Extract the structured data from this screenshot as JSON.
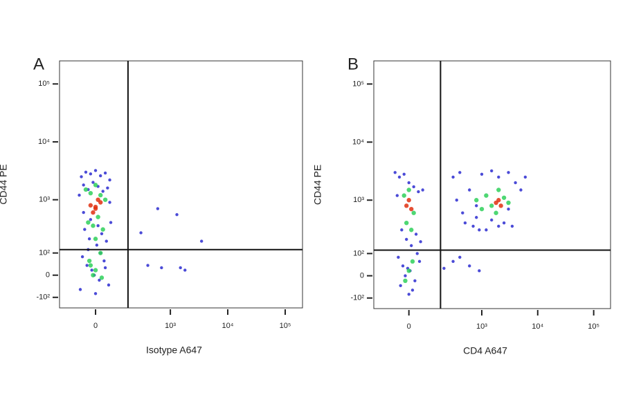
{
  "chart_data": [
    {
      "type": "scatter",
      "panel_label": "A",
      "xlabel": "Isotype A647",
      "ylabel": "CD44 PE",
      "scale": "biexponential",
      "xlim": [
        -200,
        200000
      ],
      "ylim": [
        -170,
        250000
      ],
      "xticks": [
        {
          "value": 0,
          "label": "0"
        },
        {
          "value": 1000,
          "label": "10³"
        },
        {
          "value": 10000,
          "label": "10⁴"
        },
        {
          "value": 100000,
          "label": "10⁵"
        }
      ],
      "yticks": [
        {
          "value": -100,
          "label": "-10²"
        },
        {
          "value": 0,
          "label": "0"
        },
        {
          "value": 100,
          "label": "10²"
        },
        {
          "value": 1000,
          "label": "10³"
        },
        {
          "value": 10000,
          "label": "10⁴"
        },
        {
          "value": 100000,
          "label": "10⁵"
        }
      ],
      "gates": {
        "x": 170,
        "y": 120
      },
      "series": [
        {
          "color": "#2b2bd0",
          "x": [
            -60,
            -40,
            -20,
            0,
            20,
            40,
            60,
            -50,
            -30,
            -10,
            10,
            30,
            50,
            -70,
            -45,
            -25,
            5,
            25,
            45,
            65,
            -55,
            -35,
            -15,
            15,
            35,
            55,
            -65,
            -5,
            0,
            20,
            -30,
            40,
            -50,
            10,
            60,
            -20,
            600,
            1300,
            3500,
            300,
            400,
            700,
            1500,
            1800
          ],
          "y": [
            2500,
            3000,
            2800,
            3200,
            2600,
            2900,
            2200,
            1800,
            1500,
            2000,
            1700,
            1400,
            1600,
            1200,
            300,
            200,
            150,
            250,
            180,
            400,
            80,
            40,
            20,
            -20,
            60,
            -40,
            -60,
            0,
            -80,
            100,
            120,
            30,
            600,
            350,
            900,
            450,
            700,
            550,
            180,
            260,
            40,
            30,
            30,
            20
          ]
        },
        {
          "color": "#2fd05a",
          "x": [
            -40,
            -20,
            0,
            20,
            40,
            -30,
            -10,
            10,
            30,
            -25,
            0,
            25,
            -20,
            0,
            20,
            -10
          ],
          "y": [
            1500,
            1300,
            1800,
            1200,
            1000,
            400,
            350,
            500,
            300,
            60,
            20,
            -10,
            40,
            200,
            100,
            0
          ]
        },
        {
          "color": "#e03010",
          "x": [
            -20,
            0,
            20,
            -10,
            10,
            0
          ],
          "y": [
            800,
            700,
            900,
            600,
            1000,
            750
          ]
        }
      ]
    },
    {
      "type": "scatter",
      "panel_label": "B",
      "xlabel": "CD4 A647",
      "ylabel": "CD44 PE",
      "scale": "biexponential",
      "xlim": [
        -200,
        200000
      ],
      "ylim": [
        -170,
        250000
      ],
      "xticks": [
        {
          "value": 0,
          "label": "0"
        },
        {
          "value": 1000,
          "label": "10³"
        },
        {
          "value": 10000,
          "label": "10⁴"
        },
        {
          "value": 100000,
          "label": "10⁵"
        }
      ],
      "yticks": [
        {
          "value": -100,
          "label": "-10²"
        },
        {
          "value": 0,
          "label": "0"
        },
        {
          "value": 100,
          "label": "10²"
        },
        {
          "value": 1000,
          "label": "10³"
        },
        {
          "value": 10000,
          "label": "10⁴"
        },
        {
          "value": 100000,
          "label": "10⁵"
        }
      ],
      "gates": {
        "x": 170,
        "y": 120
      },
      "series": [
        {
          "color": "#2b2bd0",
          "x": [
            -60,
            -40,
            -20,
            0,
            20,
            40,
            60,
            -50,
            -30,
            -10,
            10,
            30,
            50,
            -45,
            -25,
            5,
            25,
            45,
            -35,
            -15,
            15,
            35,
            -5,
            0,
            300,
            400,
            600,
            800,
            1000,
            1500,
            2000,
            3000,
            4000,
            5000,
            6000,
            500,
            700,
            900,
            1200,
            2500,
            3500,
            350,
            450,
            800,
            1500,
            2000,
            3000,
            300,
            600,
            900,
            200,
            400
          ],
          "y": [
            3000,
            2500,
            2800,
            2000,
            1700,
            1400,
            1500,
            1200,
            300,
            200,
            150,
            250,
            180,
            80,
            40,
            20,
            -20,
            60,
            -40,
            0,
            -60,
            100,
            30,
            -80,
            2500,
            3000,
            1500,
            800,
            2800,
            3200,
            2500,
            3000,
            2000,
            1500,
            2500,
            400,
            350,
            300,
            300,
            400,
            350,
            1000,
            600,
            500,
            450,
            350,
            700,
            60,
            40,
            20,
            30,
            80
          ]
        },
        {
          "color": "#2fd05a",
          "x": [
            -20,
            0,
            20,
            -10,
            10,
            0,
            -15,
            15,
            800,
            1200,
            1500,
            2000,
            2500,
            1000,
            3000,
            1800
          ],
          "y": [
            1200,
            1500,
            600,
            400,
            300,
            20,
            -20,
            60,
            1000,
            1200,
            800,
            1500,
            1100,
            700,
            900,
            600
          ]
        },
        {
          "color": "#e03010",
          "x": [
            -10,
            0,
            10,
            1800,
            2200,
            2000
          ],
          "y": [
            800,
            1000,
            700,
            900,
            800,
            1000
          ]
        }
      ]
    }
  ]
}
